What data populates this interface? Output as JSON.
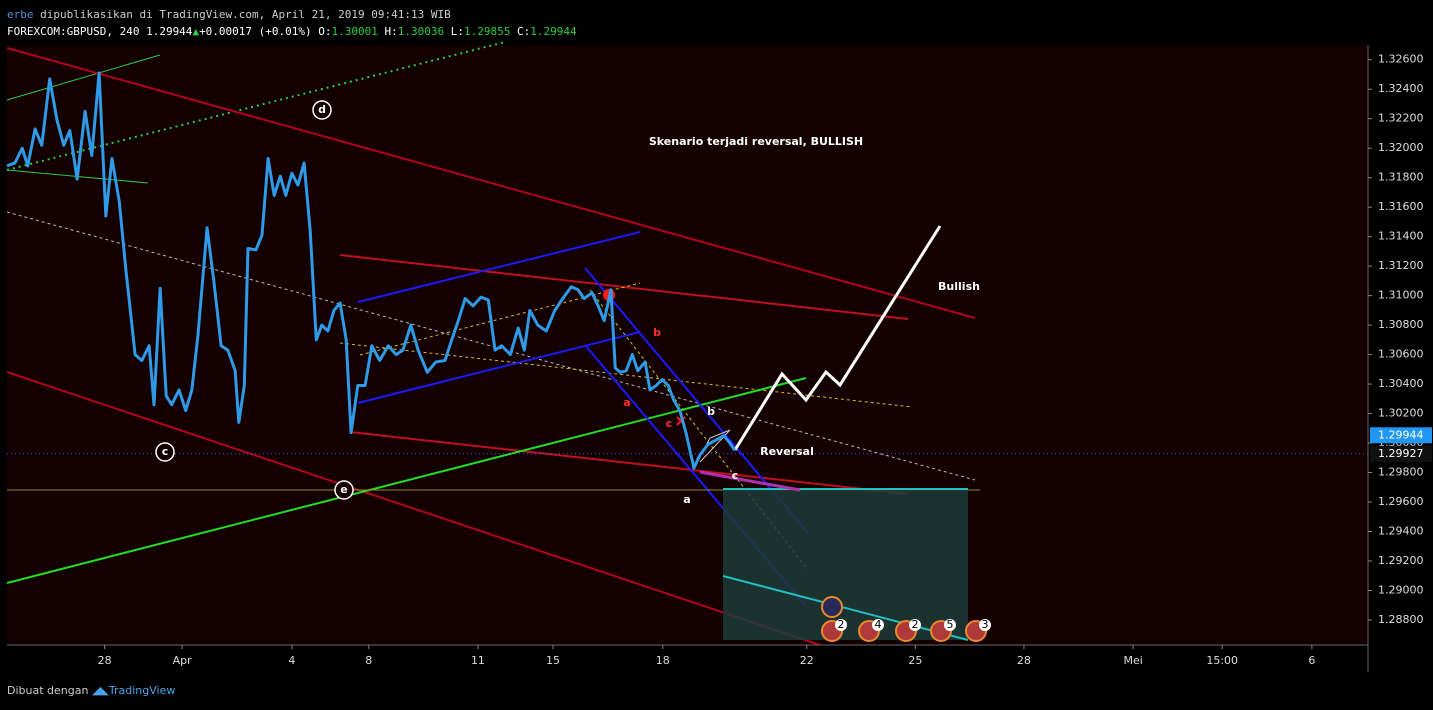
{
  "header": {
    "author": "erbe",
    "published": "dipublikasikan di TradingView.com, April 21, 2019 09:41:13 WIB",
    "symbol": "FOREXCOM:GBPUSD, 240 1.29944",
    "change": "+0.00017 (+0.01%)",
    "ohlc": [
      {
        "label": "O:",
        "value": "1.30001"
      },
      {
        "label": "H:",
        "value": "1.30036"
      },
      {
        "label": "L:",
        "value": "1.29855"
      },
      {
        "label": "C:",
        "value": "1.29944"
      }
    ]
  },
  "chart_data": {
    "type": "line",
    "color": "#2f9be8",
    "x": [
      0,
      1.3,
      2.5,
      3.4,
      4.6,
      5.7,
      7.0,
      8.2,
      9.3,
      10.3,
      11.5,
      12.8,
      13.9,
      15.1,
      16.2,
      17.2,
      18.4,
      19.5,
      21.0,
      22.1,
      23.3,
      24.1,
      25.1,
      26.1,
      27.0,
      28.2,
      29.3,
      30.3,
      31.3,
      32.8,
      33.9,
      35.1,
      36.2,
      37.4,
      38.0,
      38.9,
      39.5,
      40.8,
      41.8,
      42.8,
      43.8,
      44.8,
      45.7,
      46.7,
      47.7,
      48.7,
      49.7,
      50.7,
      51.6,
      52.6,
      53.6,
      54.6,
      55.6,
      56.4,
      57.5,
      58.7,
      59.8,
      61.1,
      62.5,
      63.8,
      64.9,
      66.2,
      67.4,
      68.9,
      70.3,
      71.8,
      72.9,
      73.9,
      75.1,
      76.4,
      77.7,
      78.9,
      80.0,
      81.1,
      82.5,
      83.8,
      84.8,
      85.7,
      87.0,
      88.4,
      89.8,
      91.1,
      92.5,
      93.6,
      94.6,
      95.9,
      96.9,
      97.9,
      99.0,
      99.7,
      100.5,
      101.5,
      102.5,
      103.4,
      104.6,
      105.4,
      106.4,
      107.4,
      108.4,
      109.3,
      110.3,
      111.3,
      112.6,
      113.6,
      114.9,
      116.2,
      117.5,
      118.5,
      119.3
    ],
    "values": [
      1.3188,
      1.319,
      1.32,
      1.3188,
      1.3213,
      1.3202,
      1.3247,
      1.3219,
      1.3202,
      1.3212,
      1.3179,
      1.3225,
      1.3195,
      1.3251,
      1.3154,
      1.3193,
      1.3164,
      1.3117,
      1.306,
      1.3056,
      1.3066,
      1.3026,
      1.3105,
      1.3032,
      1.3026,
      1.3036,
      1.3022,
      1.3036,
      1.3073,
      1.3146,
      1.311,
      1.3066,
      1.3063,
      1.3049,
      1.3014,
      1.3039,
      1.3132,
      1.3131,
      1.3141,
      1.3193,
      1.3168,
      1.3181,
      1.3168,
      1.3183,
      1.3175,
      1.319,
      1.3144,
      1.307,
      1.308,
      1.3076,
      1.309,
      1.3095,
      1.307,
      1.3007,
      1.3039,
      1.3039,
      1.3066,
      1.3056,
      1.3066,
      1.306,
      1.3063,
      1.308,
      1.3063,
      1.3048,
      1.3055,
      1.3056,
      1.307,
      1.3082,
      1.3098,
      1.3093,
      1.3099,
      1.3097,
      1.3063,
      1.3066,
      1.306,
      1.3078,
      1.3063,
      1.309,
      1.308,
      1.3076,
      1.309,
      1.3098,
      1.3106,
      1.3104,
      1.3098,
      1.3102,
      1.3093,
      1.3083,
      1.3104,
      1.3051,
      1.3048,
      1.3049,
      1.306,
      1.3049,
      1.3055,
      1.3036,
      1.3039,
      1.3043,
      1.3039,
      1.3029,
      1.3022,
      1.3007,
      1.2983,
      1.2992,
      1.2999,
      1.3002,
      1.3005,
      1.3,
      1.2995
    ],
    "xlim": [
      0,
      223.1
    ],
    "xticks": [
      {
        "value": 16,
        "label": "28"
      },
      {
        "value": 28.7,
        "label": "Apr"
      },
      {
        "value": 46.7,
        "label": "4"
      },
      {
        "value": 59.3,
        "label": "8"
      },
      {
        "value": 77.2,
        "label": "11"
      },
      {
        "value": 89.5,
        "label": "15"
      },
      {
        "value": 107.5,
        "label": "18"
      },
      {
        "value": 131.1,
        "label": "22"
      },
      {
        "value": 148.9,
        "label": "25"
      },
      {
        "value": 166.7,
        "label": "28"
      },
      {
        "value": 184.6,
        "label": "Mei"
      },
      {
        "value": 199.2,
        "label": "15:00"
      },
      {
        "value": 213.9,
        "label": "6"
      }
    ],
    "ylim": [
      1.2863,
      1.327
    ],
    "yticks": [
      {
        "value": 1.326,
        "label": "1.32600"
      },
      {
        "value": 1.324,
        "label": "1.32400"
      },
      {
        "value": 1.322,
        "label": "1.32200"
      },
      {
        "value": 1.32,
        "label": "1.32000"
      },
      {
        "value": 1.318,
        "label": "1.31800"
      },
      {
        "value": 1.316,
        "label": "1.31600"
      },
      {
        "value": 1.314,
        "label": "1.31400"
      },
      {
        "value": 1.312,
        "label": "1.31200"
      },
      {
        "value": 1.31,
        "label": "1.31000"
      },
      {
        "value": 1.308,
        "label": "1.30800"
      },
      {
        "value": 1.306,
        "label": "1.30600"
      },
      {
        "value": 1.304,
        "label": "1.30400"
      },
      {
        "value": 1.302,
        "label": "1.30200"
      },
      {
        "value": 1.3,
        "label": "1.30000"
      },
      {
        "value": 1.298,
        "label": "1.29800"
      },
      {
        "value": 1.296,
        "label": "1.29600"
      },
      {
        "value": 1.294,
        "label": "1.29400"
      },
      {
        "value": 1.292,
        "label": "1.29200"
      },
      {
        "value": 1.29,
        "label": "1.29000"
      },
      {
        "value": 1.288,
        "label": "1.28800"
      }
    ],
    "price_labels": [
      {
        "value": 1.29944,
        "label": "1.29944"
      },
      {
        "value": 1.29927,
        "label": "1.29927"
      }
    ],
    "annotations": [
      "Skenario terjadi reversal, BULLISH",
      "Bullish",
      "Reversal"
    ],
    "wave_labels": [
      "d",
      "c",
      "e",
      "a",
      "b",
      "c",
      "b",
      "a",
      "c"
    ],
    "event_badges": [
      "2",
      "4",
      "2",
      "5",
      "3"
    ]
  },
  "footer": {
    "made_with": "Dibuat dengan",
    "brand": "TradingView"
  }
}
